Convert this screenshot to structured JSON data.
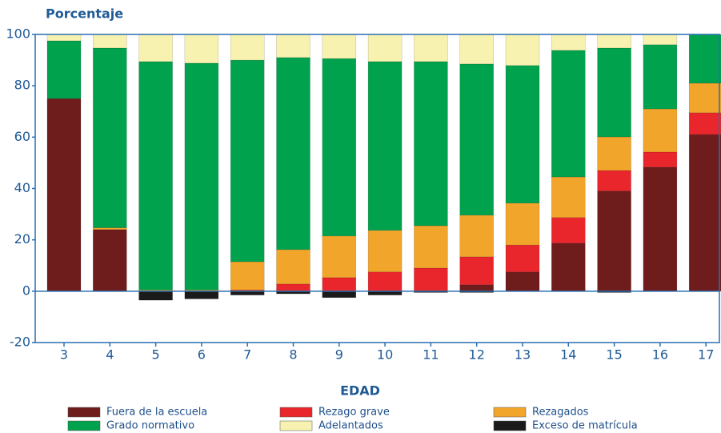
{
  "chart_data": {
    "type": "stacked_bar",
    "ylabel": "Porcentaje",
    "xlabel": "EDAD",
    "categories": [
      "3",
      "4",
      "5",
      "6",
      "7",
      "8",
      "9",
      "10",
      "11",
      "12",
      "13",
      "14",
      "15",
      "16",
      "17"
    ],
    "series": [
      {
        "name": "Fuera de la escuela",
        "color": "#6e1c1c",
        "values": [
          75,
          24,
          0,
          0,
          0,
          0,
          0,
          0,
          0,
          2.5,
          7.5,
          18.7,
          39,
          48.3,
          61
        ]
      },
      {
        "name": "Rezago grave",
        "color": "#e8262b",
        "values": [
          0,
          0,
          0,
          0,
          0.5,
          2.8,
          5.3,
          7.5,
          9,
          10.9,
          10.5,
          10,
          8,
          5.9,
          8.5
        ]
      },
      {
        "name": "Rezagados",
        "color": "#f2a52b",
        "values": [
          0,
          0.7,
          0.5,
          0.5,
          11,
          13.4,
          16.2,
          16.2,
          16.5,
          16.2,
          16.3,
          15.8,
          13.1,
          16.8,
          11.5
        ]
      },
      {
        "name": "Grado normativo",
        "color": "#00a24d",
        "values": [
          22.5,
          70,
          88.9,
          88.3,
          78.5,
          74.8,
          69.1,
          65.7,
          63.9,
          58.9,
          53.6,
          49.3,
          34.6,
          25,
          19
        ]
      },
      {
        "name": "Adelantados",
        "color": "#f8f2b0",
        "values": [
          2.5,
          5.3,
          10.6,
          11.2,
          10,
          9,
          9.4,
          10.6,
          10.6,
          11.5,
          12.1,
          6.2,
          5.3,
          4,
          0
        ]
      },
      {
        "name": "Exceso de matrícula",
        "color": "#1a1a1a",
        "values": [
          0,
          0,
          -3.5,
          -3,
          -1.5,
          -1,
          -2.5,
          -1.5,
          -0.5,
          -0.5,
          0,
          0,
          -0.5,
          0,
          0
        ]
      }
    ],
    "ylim": [
      -20,
      100
    ],
    "yticks": [
      -20,
      0,
      20,
      40,
      60,
      80,
      100
    ],
    "grid": false
  }
}
